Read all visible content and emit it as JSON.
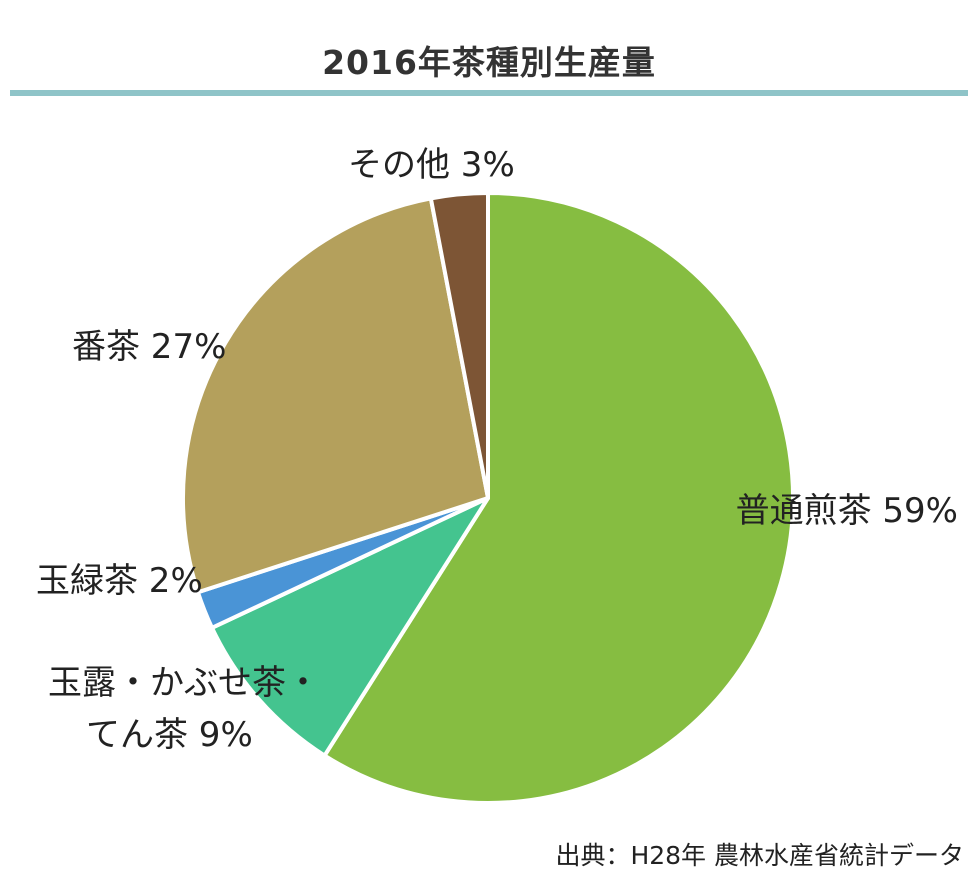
{
  "chart_data": {
    "type": "pie",
    "title": "2016年茶種別生産量",
    "title_rule_color": "#8fc4c8",
    "start_angle_deg": 0,
    "direction": "clockwise",
    "slices": [
      {
        "label_lines": [
          "普通煎茶 59%"
        ],
        "value": 59,
        "color": "#86bd41"
      },
      {
        "label_lines": [
          "玉露・かぶせ茶・",
          "てん茶 9%"
        ],
        "value": 9,
        "color": "#44c48f"
      },
      {
        "label_lines": [
          "玉緑茶 2%"
        ],
        "value": 2,
        "color": "#4a94d6"
      },
      {
        "label_lines": [
          "番茶 27%"
        ],
        "value": 27,
        "color": "#b4a05c"
      },
      {
        "label_lines": [
          "その他 3%"
        ],
        "value": 3,
        "color": "#7d5535"
      }
    ],
    "source": "出典：H28年 農林水産省統計データ"
  }
}
